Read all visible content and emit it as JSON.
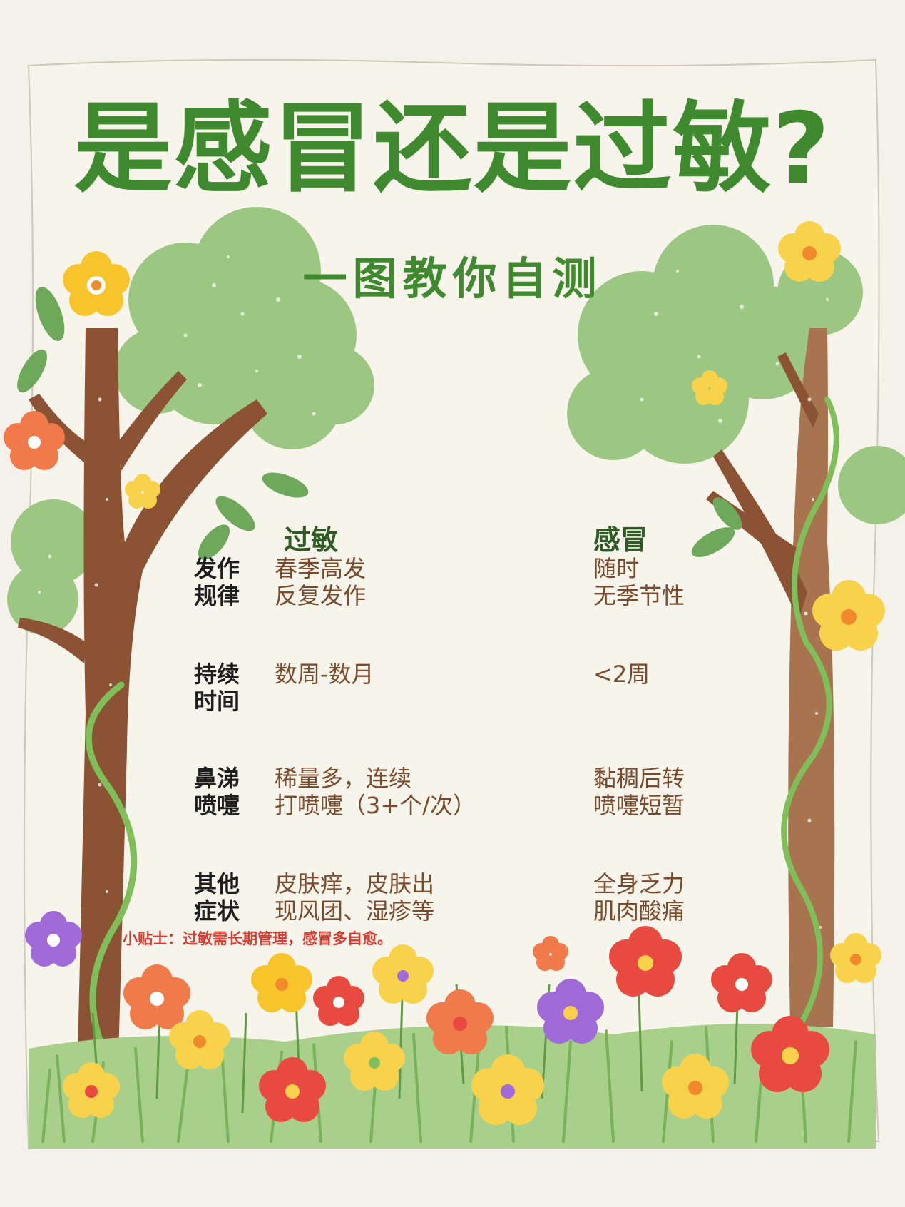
{
  "title": "是感冒还是过敏?",
  "subtitle": "一图教你自测",
  "table": {
    "headers": {
      "allergy": "过敏",
      "cold": "感冒"
    },
    "rows": [
      {
        "label": [
          "发作",
          "规律"
        ],
        "allergy": [
          "春季高发",
          "反复发作"
        ],
        "cold": [
          "随时",
          "无季节性"
        ]
      },
      {
        "label": [
          "持续",
          "时间"
        ],
        "allergy": [
          "数周-数月"
        ],
        "cold": [
          "<2周"
        ]
      },
      {
        "label": [
          "鼻涕",
          "喷嚏"
        ],
        "allergy": [
          "稀量多，连续",
          "打喷嚏（3+个/次）"
        ],
        "cold": [
          "黏稠后转",
          "喷嚏短暂"
        ]
      },
      {
        "label": [
          "其他",
          "症状"
        ],
        "allergy": [
          "皮肤痒，皮肤出",
          "现风团、湿疹等"
        ],
        "cold": [
          "全身乏力",
          "肌肉酸痛"
        ]
      }
    ]
  },
  "tip": "小贴士：过敏需长期管理，感冒多自愈。",
  "colors": {
    "background": "#f4f1ea",
    "title_green": "#3f8a2e",
    "header_dark_green": "#2f5a24",
    "cell_brown": "#7a4a2c",
    "tip_red": "#d93a2f",
    "trunk_brown": "#8b5334",
    "trunk_light": "#a8734f",
    "foliage": "#9cc783",
    "grass": "#8dc06a"
  },
  "illustration": {
    "elements": [
      "tree-left",
      "tree-right",
      "vine",
      "leaf",
      "flower",
      "grass"
    ],
    "flower_colors": [
      "#f7c52b",
      "#e94a3f",
      "#f07a4a",
      "#a06ad8",
      "#f7d24a"
    ]
  }
}
